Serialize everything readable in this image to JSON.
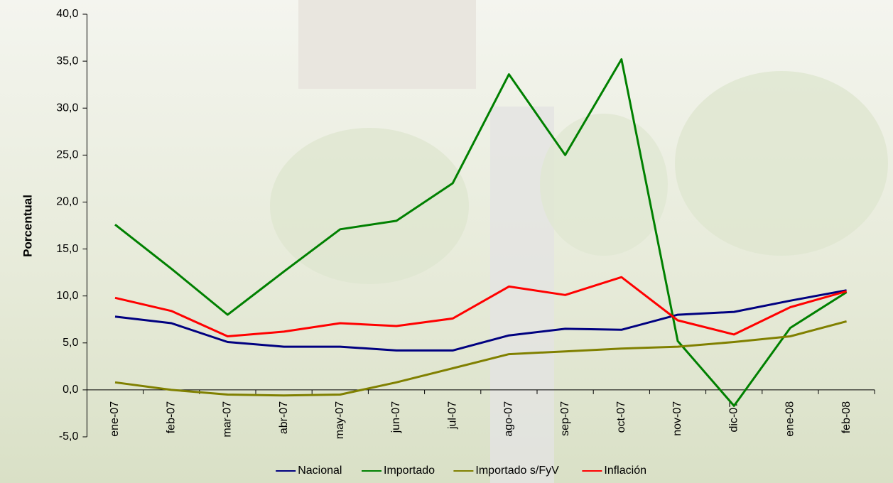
{
  "chart_data": {
    "type": "line",
    "ylabel": "Porcentual",
    "categories": [
      "ene-07",
      "feb-07",
      "mar-07",
      "abr-07",
      "may-07",
      "jun-07",
      "jul-07",
      "ago-07",
      "sep-07",
      "oct-07",
      "nov-07",
      "dic-07",
      "ene-08",
      "feb-08"
    ],
    "series": [
      {
        "name": "Nacional",
        "color": "#000080",
        "values": [
          7.8,
          7.1,
          5.1,
          4.6,
          4.6,
          4.2,
          4.2,
          5.8,
          6.5,
          6.4,
          8.0,
          8.3,
          9.5,
          10.6
        ]
      },
      {
        "name": "Importado",
        "color": "#008000",
        "values": [
          17.6,
          12.9,
          8.0,
          12.6,
          17.1,
          18.0,
          22.0,
          33.6,
          25.0,
          35.2,
          5.2,
          -1.7,
          6.6,
          10.4
        ]
      },
      {
        "name": "Importado s/FyV",
        "color": "#808000",
        "values": [
          0.8,
          0.0,
          -0.5,
          -0.6,
          -0.5,
          0.8,
          2.3,
          3.8,
          4.1,
          4.4,
          4.6,
          5.1,
          5.7,
          7.3
        ]
      },
      {
        "name": "Inflación",
        "color": "#ff0000",
        "values": [
          9.8,
          8.4,
          5.7,
          6.2,
          7.1,
          6.8,
          7.6,
          11.0,
          10.1,
          12.0,
          7.4,
          5.9,
          8.8,
          10.5
        ]
      }
    ],
    "ylim": [
      -5,
      40
    ],
    "yticks": [
      {
        "value": -5,
        "label": "-5,0"
      },
      {
        "value": 0,
        "label": "0,0"
      },
      {
        "value": 5,
        "label": "5,0"
      },
      {
        "value": 10,
        "label": "10,0"
      },
      {
        "value": 15,
        "label": "15,0"
      },
      {
        "value": 20,
        "label": "20,0"
      },
      {
        "value": 25,
        "label": "25,0"
      },
      {
        "value": 30,
        "label": "30,0"
      },
      {
        "value": 35,
        "label": "35,0"
      },
      {
        "value": 40,
        "label": "40,0"
      }
    ],
    "legend": "bottom"
  }
}
